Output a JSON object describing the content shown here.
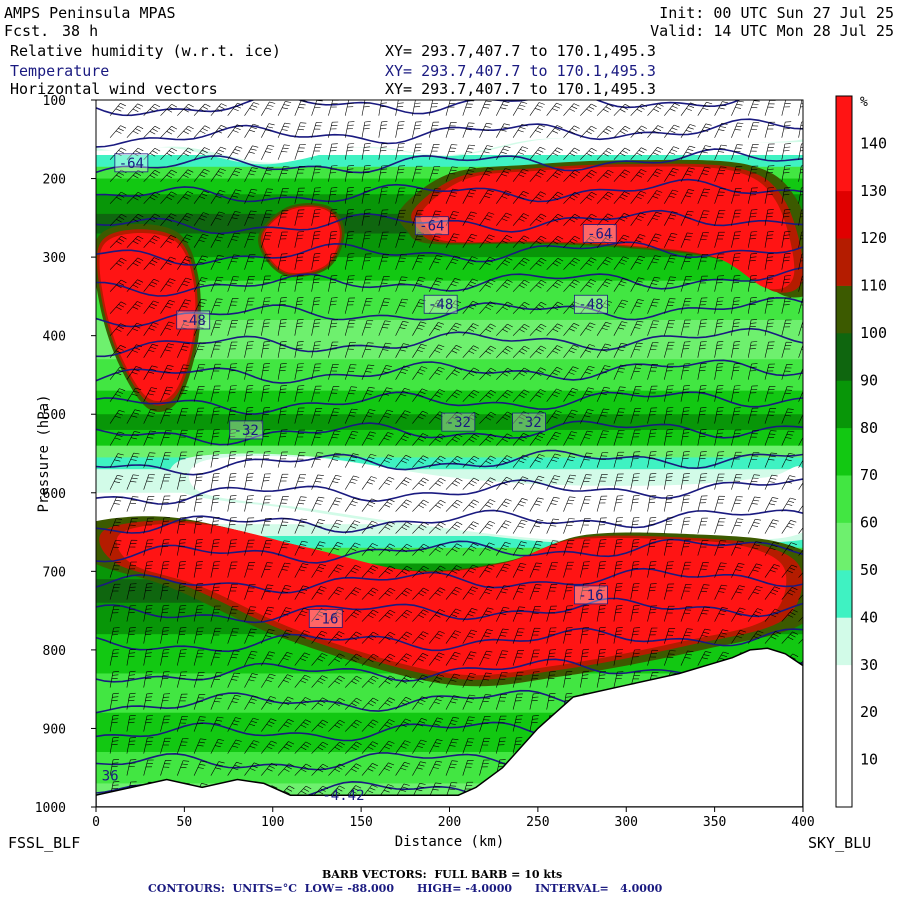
{
  "header": {
    "model": "AMPS Peninsula MPAS",
    "fcst_label": "Fcst.",
    "fcst_value": "38 h",
    "init": "Init: 00 UTC Sun 27 Jul 25",
    "valid": "Valid: 14 UTC Mon 28 Jul 25",
    "fields": [
      {
        "name": "Relative humidity (w.r.t. ice)",
        "xy": "XY= 293.7,407.7 to 170.1,495.3",
        "color": "#000000"
      },
      {
        "name": "Temperature",
        "xy": "XY= 293.7,407.7 to 170.1,495.3",
        "color": "#1a1a80"
      },
      {
        "name": "Horizontal wind vectors",
        "xy": "XY= 293.7,407.7 to 170.1,495.3",
        "color": "#000000"
      }
    ]
  },
  "footer": {
    "left_station": "FSSL_BLF",
    "right_station": "SKY_BLU",
    "barb_note": "BARB VECTORS:  FULL BARB = 10 kts",
    "contours_note": "CONTOURS:  UNITS=°C  LOW= -88.000      HIGH= -4.0000      INTERVAL=   4.0000"
  },
  "chart_data": {
    "type": "heatmap",
    "xlabel": "Distance (km)",
    "ylabel": "Pressure (hPa)",
    "xlim": [
      0,
      400
    ],
    "ylim": [
      1000,
      100
    ],
    "x_ticks": [
      0,
      50,
      100,
      150,
      200,
      250,
      300,
      350,
      400
    ],
    "y_ticks": [
      100,
      200,
      300,
      400,
      500,
      600,
      700,
      800,
      900,
      1000
    ],
    "colorbar": {
      "unit": "%",
      "levels": [
        10,
        20,
        30,
        40,
        50,
        60,
        70,
        80,
        90,
        100,
        110,
        120,
        130,
        140
      ],
      "colors": [
        "#ffffff",
        "#ffffff",
        "#ffffff",
        "#d2fbe8",
        "#3ff2c2",
        "#6ef06e",
        "#42e642",
        "#12c812",
        "#089608",
        "#0f660f",
        "#3c5a00",
        "#b41c00",
        "#e00000",
        "#ff1414",
        "#ff1414"
      ]
    },
    "rh_regions": [
      {
        "level": "white",
        "points": [
          [
            0,
            160
          ],
          [
            50,
            160
          ],
          [
            100,
            180
          ],
          [
            150,
            160
          ],
          [
            200,
            170
          ],
          [
            250,
            150
          ],
          [
            300,
            150
          ],
          [
            400,
            150
          ],
          [
            400,
            100
          ],
          [
            0,
            100
          ]
        ]
      },
      {
        "level": 130,
        "points": [
          [
            3,
            290
          ],
          [
            20,
            270
          ],
          [
            45,
            280
          ],
          [
            55,
            330
          ],
          [
            55,
            400
          ],
          [
            45,
            470
          ],
          [
            30,
            480
          ],
          [
            15,
            430
          ],
          [
            5,
            360
          ]
        ]
      },
      {
        "level": 130,
        "points": [
          [
            95,
            270
          ],
          [
            110,
            240
          ],
          [
            130,
            240
          ],
          [
            138,
            270
          ],
          [
            130,
            310
          ],
          [
            110,
            320
          ],
          [
            98,
            300
          ]
        ]
      },
      {
        "level": 130,
        "points": [
          [
            185,
            240
          ],
          [
            210,
            200
          ],
          [
            250,
            190
          ],
          [
            300,
            185
          ],
          [
            360,
            190
          ],
          [
            385,
            230
          ],
          [
            395,
            320
          ],
          [
            380,
            340
          ],
          [
            350,
            300
          ],
          [
            300,
            285
          ],
          [
            250,
            280
          ],
          [
            200,
            280
          ],
          [
            188,
            265
          ]
        ]
      },
      {
        "level": "white",
        "points": [
          [
            60,
            560
          ],
          [
            120,
            555
          ],
          [
            200,
            580
          ],
          [
            260,
            590
          ],
          [
            330,
            590
          ],
          [
            380,
            580
          ],
          [
            400,
            570
          ],
          [
            400,
            650
          ],
          [
            330,
            660
          ],
          [
            260,
            660
          ],
          [
            180,
            640
          ],
          [
            120,
            620
          ],
          [
            60,
            600
          ]
        ]
      },
      {
        "level": 130,
        "points": [
          [
            15,
            650
          ],
          [
            60,
            640
          ],
          [
            120,
            670
          ],
          [
            180,
            700
          ],
          [
            230,
            690
          ],
          [
            270,
            660
          ],
          [
            330,
            660
          ],
          [
            370,
            670
          ],
          [
            390,
            700
          ],
          [
            380,
            760
          ],
          [
            330,
            790
          ],
          [
            260,
            820
          ],
          [
            200,
            830
          ],
          [
            120,
            780
          ],
          [
            60,
            720
          ],
          [
            20,
            690
          ]
        ]
      }
    ],
    "temperature_contours": [
      {
        "value": -64,
        "label_x": 20,
        "label_p": 180
      },
      {
        "value": -64,
        "label_x": 190,
        "label_p": 260
      },
      {
        "value": -64,
        "label_x": 285,
        "label_p": 270
      },
      {
        "value": -48,
        "label_x": 55,
        "label_p": 380
      },
      {
        "value": -48,
        "label_x": 195,
        "label_p": 360
      },
      {
        "value": -48,
        "label_x": 280,
        "label_p": 360
      },
      {
        "value": -32,
        "label_x": 85,
        "label_p": 520
      },
      {
        "value": -32,
        "label_x": 205,
        "label_p": 510
      },
      {
        "value": -32,
        "label_x": 245,
        "label_p": 510
      },
      {
        "value": -16,
        "label_x": 130,
        "label_p": 760
      },
      {
        "value": -16,
        "label_x": 280,
        "label_p": 730
      }
    ],
    "extra_labels": [
      {
        "text": "-4.42",
        "x": 140,
        "p": 985
      },
      {
        "text": "36",
        "x": 8,
        "p": 960
      }
    ],
    "terrain": [
      [
        0,
        985
      ],
      [
        20,
        975
      ],
      [
        40,
        965
      ],
      [
        60,
        975
      ],
      [
        80,
        965
      ],
      [
        95,
        970
      ],
      [
        110,
        985
      ],
      [
        150,
        985
      ],
      [
        205,
        985
      ],
      [
        215,
        975
      ],
      [
        230,
        950
      ],
      [
        250,
        900
      ],
      [
        270,
        860
      ],
      [
        300,
        845
      ],
      [
        330,
        830
      ],
      [
        360,
        810
      ],
      [
        370,
        800
      ],
      [
        380,
        798
      ],
      [
        390,
        805
      ],
      [
        400,
        820
      ]
    ],
    "terrain_color": "#ffffff"
  }
}
